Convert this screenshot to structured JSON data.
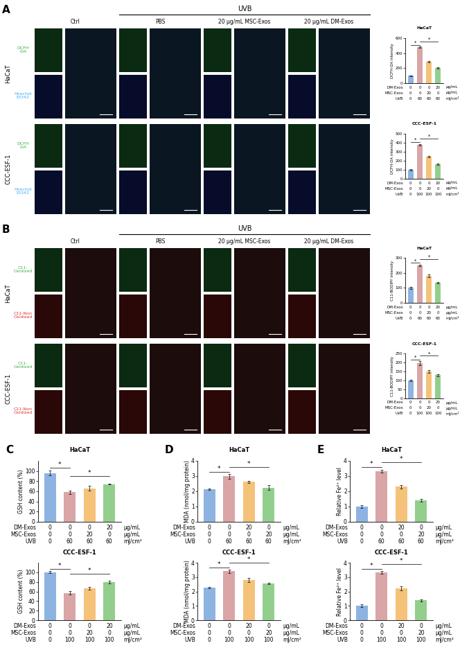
{
  "image_panels": [
    {
      "letter": "A",
      "group_label": "UVB",
      "columns": [
        "Ctrl",
        "PBS",
        "20 µg/mL MSC-Exos",
        "20 µg/mL DM-Exos"
      ],
      "rows": [
        {
          "name": "HaCaT",
          "stains": [
            "DCFH\n-DA",
            "Hoechst\n33342"
          ]
        },
        {
          "name": "CCC-ESF-1",
          "stains": [
            "DCFH\n-DA",
            "Hoechst\n33342"
          ]
        }
      ]
    },
    {
      "letter": "B",
      "group_label": "UVB",
      "columns": [
        "Ctrl",
        "PBS",
        "20 µg/mL MSC-Exos",
        "20 µg/mL DM-Exos"
      ],
      "rows": [
        {
          "name": "HaCaT",
          "stains": [
            "C11-\nOxidized",
            "C11-Non\nOxidized"
          ]
        },
        {
          "name": "CCC-ESF-1",
          "stains": [
            "C11-\nOxidized",
            "C11-Non\nOxidized"
          ]
        }
      ]
    }
  ],
  "letters": [
    "C",
    "D",
    "E"
  ],
  "chart_data": [
    {
      "type": "bar",
      "title": "HaCaT",
      "ylabel": "DCFH-DA intensity",
      "tick_labels": "y",
      "values": [
        100,
        480,
        285,
        205
      ],
      "errors": [
        5,
        6,
        8,
        8
      ],
      "colors": [
        "#8db3e2",
        "#d9a5a6",
        "#f5c27a",
        "#93cf8c"
      ],
      "ylim": [
        0,
        600
      ],
      "yticks": [
        0,
        200,
        400,
        600
      ],
      "significance": {
        "label": "*",
        "pairs": [
          [
            0,
            1
          ],
          [
            1,
            3
          ]
        ]
      },
      "conditions": [
        {
          "name": "DM-Exos",
          "values": [
            0,
            0,
            0,
            20
          ],
          "unit": "µg/mL"
        },
        {
          "name": "MSC-Exos",
          "values": [
            0,
            0,
            20,
            0
          ],
          "unit": "µg/mL"
        },
        {
          "name": "UVB",
          "values": [
            0,
            60,
            60,
            60
          ],
          "unit": "mJ/cm²"
        }
      ]
    },
    {
      "type": "bar",
      "title": "CCC-ESF-1",
      "ylabel": "DCFH-DA intensity",
      "tick_labels": "y",
      "values": [
        100,
        380,
        245,
        165
      ],
      "errors": [
        5,
        8,
        6,
        8
      ],
      "colors": [
        "#8db3e2",
        "#d9a5a6",
        "#f5c27a",
        "#93cf8c"
      ],
      "ylim": [
        0,
        500
      ],
      "yticks": [
        0,
        100,
        200,
        300,
        400,
        500
      ],
      "significance": {
        "label": "*",
        "pairs": [
          [
            0,
            1
          ],
          [
            1,
            3
          ]
        ]
      },
      "conditions": [
        {
          "name": "DM-Exos",
          "values": [
            0,
            0,
            0,
            20
          ],
          "unit": "µg/mL"
        },
        {
          "name": "MSC-Exos",
          "values": [
            0,
            0,
            20,
            0
          ],
          "unit": "µg/mL"
        },
        {
          "name": "UVB",
          "values": [
            0,
            100,
            100,
            100
          ],
          "unit": "mJ/cm²"
        }
      ]
    },
    {
      "type": "bar",
      "title": "HaCaT",
      "ylabel": "C11-BODIPY intensity",
      "tick_labels": "y",
      "values": [
        100,
        250,
        180,
        135
      ],
      "errors": [
        6,
        4,
        10,
        5
      ],
      "colors": [
        "#8db3e2",
        "#d9a5a6",
        "#f5c27a",
        "#93cf8c"
      ],
      "ylim": [
        0,
        300
      ],
      "yticks": [
        0,
        100,
        200,
        300
      ],
      "significance": {
        "label": "*",
        "pairs": [
          [
            0,
            1
          ],
          [
            1,
            3
          ]
        ]
      },
      "conditions": [
        {
          "name": "DM-Exos",
          "values": [
            0,
            0,
            0,
            20
          ],
          "unit": "µg/mL"
        },
        {
          "name": "MSC-Exos",
          "values": [
            0,
            0,
            20,
            0
          ],
          "unit": "µg/mL"
        },
        {
          "name": "UVB",
          "values": [
            0,
            60,
            60,
            60
          ],
          "unit": "mJ/cm²"
        }
      ]
    },
    {
      "type": "bar",
      "title": "CCC-ESF-1",
      "ylabel": "C11-BODIPY intensity",
      "tick_labels": "y",
      "values": [
        100,
        195,
        150,
        130
      ],
      "errors": [
        5,
        12,
        6,
        5
      ],
      "colors": [
        "#8db3e2",
        "#d9a5a6",
        "#f5c27a",
        "#93cf8c"
      ],
      "ylim": [
        0,
        250
      ],
      "yticks": [
        0,
        50,
        100,
        150,
        200,
        250
      ],
      "significance": {
        "label": "*",
        "pairs": [
          [
            0,
            1
          ],
          [
            1,
            3
          ]
        ]
      },
      "conditions": [
        {
          "name": "DM-Exos",
          "values": [
            0,
            0,
            0,
            20
          ],
          "unit": "µg/mL"
        },
        {
          "name": "MSC-Exos",
          "values": [
            0,
            0,
            20,
            0
          ],
          "unit": "µg/mL"
        },
        {
          "name": "UVB",
          "values": [
            0,
            100,
            100,
            100
          ],
          "unit": "mJ/cm²"
        }
      ]
    },
    {
      "type": "bar",
      "title": "HaCaT",
      "ylabel": "GSH content (%)",
      "tick_labels": "y",
      "values": [
        96,
        58,
        66,
        74
      ],
      "errors": [
        5,
        3,
        5,
        1
      ],
      "colors": [
        "#8db3e2",
        "#d9a5a6",
        "#f5c27a",
        "#93cf8c"
      ],
      "ylim": [
        0,
        120
      ],
      "yticks": [
        0,
        20,
        40,
        60,
        80,
        100
      ],
      "significance": {
        "label": "*",
        "pairs": [
          [
            0,
            1
          ],
          [
            1,
            3
          ]
        ]
      },
      "conditions": [
        {
          "name": "DM-Exos",
          "values": [
            0,
            0,
            0,
            20
          ],
          "unit": "µg/mL"
        },
        {
          "name": "MSC-Exos",
          "values": [
            0,
            0,
            20,
            0
          ],
          "unit": "µg/mL"
        },
        {
          "name": "UVB",
          "values": [
            0,
            60,
            60,
            60
          ],
          "unit": "mJ/cm²"
        }
      ]
    },
    {
      "type": "bar",
      "title": "HaCaT",
      "ylabel": "MDA (nmol/mg protein)",
      "tick_labels": "y",
      "values": [
        2.12,
        2.98,
        2.62,
        2.25
      ],
      "errors": [
        0.05,
        0.15,
        0.08,
        0.15
      ],
      "colors": [
        "#8db3e2",
        "#d9a5a6",
        "#f5c27a",
        "#93cf8c"
      ],
      "ylim": [
        0,
        4
      ],
      "yticks": [
        0,
        1,
        2,
        3,
        4
      ],
      "significance": {
        "label": "*",
        "pairs": [
          [
            0,
            1
          ],
          [
            1,
            3
          ]
        ]
      },
      "conditions": [
        {
          "name": "DM-Exos",
          "values": [
            0,
            0,
            20,
            0
          ],
          "unit": "µg/mL"
        },
        {
          "name": "MSC-Exos",
          "values": [
            0,
            0,
            0,
            20
          ],
          "unit": "µg/mL"
        },
        {
          "name": "UVB",
          "values": [
            0,
            60,
            60,
            60
          ],
          "unit": "mJ/cm²"
        }
      ]
    },
    {
      "type": "bar",
      "title": "HaCaT",
      "ylabel": "Relative Fe²⁺ level",
      "tick_labels": "y",
      "values": [
        1.0,
        3.33,
        2.3,
        1.4
      ],
      "errors": [
        0.08,
        0.08,
        0.1,
        0.08
      ],
      "colors": [
        "#8db3e2",
        "#d9a5a6",
        "#f5c27a",
        "#93cf8c"
      ],
      "ylim": [
        0,
        4
      ],
      "yticks": [
        0,
        1,
        2,
        3,
        4
      ],
      "significance": {
        "label": "*",
        "pairs": [
          [
            0,
            1
          ],
          [
            1,
            3
          ]
        ]
      },
      "conditions": [
        {
          "name": "DM-Exos",
          "values": [
            0,
            0,
            20,
            0
          ],
          "unit": "µg/mL"
        },
        {
          "name": "MSC-Exos",
          "values": [
            0,
            0,
            0,
            20
          ],
          "unit": "µg/mL"
        },
        {
          "name": "UVB",
          "values": [
            0,
            60,
            60,
            60
          ],
          "unit": "mJ/cm²"
        }
      ]
    },
    {
      "type": "bar",
      "title": "CCC-ESF-1",
      "ylabel": "GSH content (%)",
      "tick_labels": "y",
      "values": [
        100,
        57,
        67,
        80
      ],
      "errors": [
        2,
        4,
        3,
        3
      ],
      "colors": [
        "#8db3e2",
        "#d9a5a6",
        "#f5c27a",
        "#93cf8c"
      ],
      "ylim": [
        0,
        120
      ],
      "yticks": [
        0,
        20,
        40,
        60,
        80,
        100
      ],
      "significance": {
        "label": "*",
        "pairs": [
          [
            0,
            1
          ],
          [
            1,
            3
          ]
        ]
      },
      "conditions": [
        {
          "name": "DM-Exos",
          "values": [
            0,
            0,
            0,
            20
          ],
          "unit": "µg/mL"
        },
        {
          "name": "MSC-Exos",
          "values": [
            0,
            0,
            20,
            0
          ],
          "unit": "µg/mL"
        },
        {
          "name": "UVB",
          "values": [
            0,
            100,
            100,
            100
          ],
          "unit": "mJ/cm²"
        }
      ]
    },
    {
      "type": "bar",
      "title": "CCC-ESF-1",
      "ylabel": "MDA (nmol/mg protein)",
      "tick_labels": "y",
      "values": [
        2.25,
        3.4,
        2.8,
        2.55
      ],
      "errors": [
        0.05,
        0.12,
        0.15,
        0.06
      ],
      "colors": [
        "#8db3e2",
        "#d9a5a6",
        "#f5c27a",
        "#93cf8c"
      ],
      "ylim": [
        0,
        4
      ],
      "yticks": [
        0,
        1,
        2,
        3,
        4
      ],
      "significance": {
        "label": "*",
        "pairs": [
          [
            0,
            1
          ],
          [
            1,
            3
          ]
        ]
      },
      "conditions": [
        {
          "name": "DM-Exos",
          "values": [
            0,
            0,
            20,
            0
          ],
          "unit": "µg/mL"
        },
        {
          "name": "MSC-Exos",
          "values": [
            0,
            0,
            0,
            20
          ],
          "unit": "µg/mL"
        },
        {
          "name": "UVB",
          "values": [
            0,
            100,
            100,
            100
          ],
          "unit": "mJ/cm²"
        }
      ]
    },
    {
      "type": "bar",
      "title": "CCC-ESF-1",
      "ylabel": "Relative Fe²⁺ level",
      "tick_labels": "y",
      "values": [
        1.0,
        3.33,
        2.2,
        1.38
      ],
      "errors": [
        0.1,
        0.1,
        0.15,
        0.06
      ],
      "colors": [
        "#8db3e2",
        "#d9a5a6",
        "#f5c27a",
        "#93cf8c"
      ],
      "ylim": [
        0,
        4
      ],
      "yticks": [
        0,
        1,
        2,
        3,
        4
      ],
      "significance": {
        "label": "*",
        "pairs": [
          [
            0,
            1
          ],
          [
            1,
            3
          ]
        ]
      },
      "conditions": [
        {
          "name": "DM-Exos",
          "values": [
            0,
            0,
            20,
            0
          ],
          "unit": "µg/mL"
        },
        {
          "name": "MSC-Exos",
          "values": [
            0,
            0,
            0,
            20
          ],
          "unit": "µg/mL"
        },
        {
          "name": "UVB",
          "values": [
            0,
            100,
            100,
            100
          ],
          "unit": "mJ/cm²"
        }
      ]
    }
  ]
}
